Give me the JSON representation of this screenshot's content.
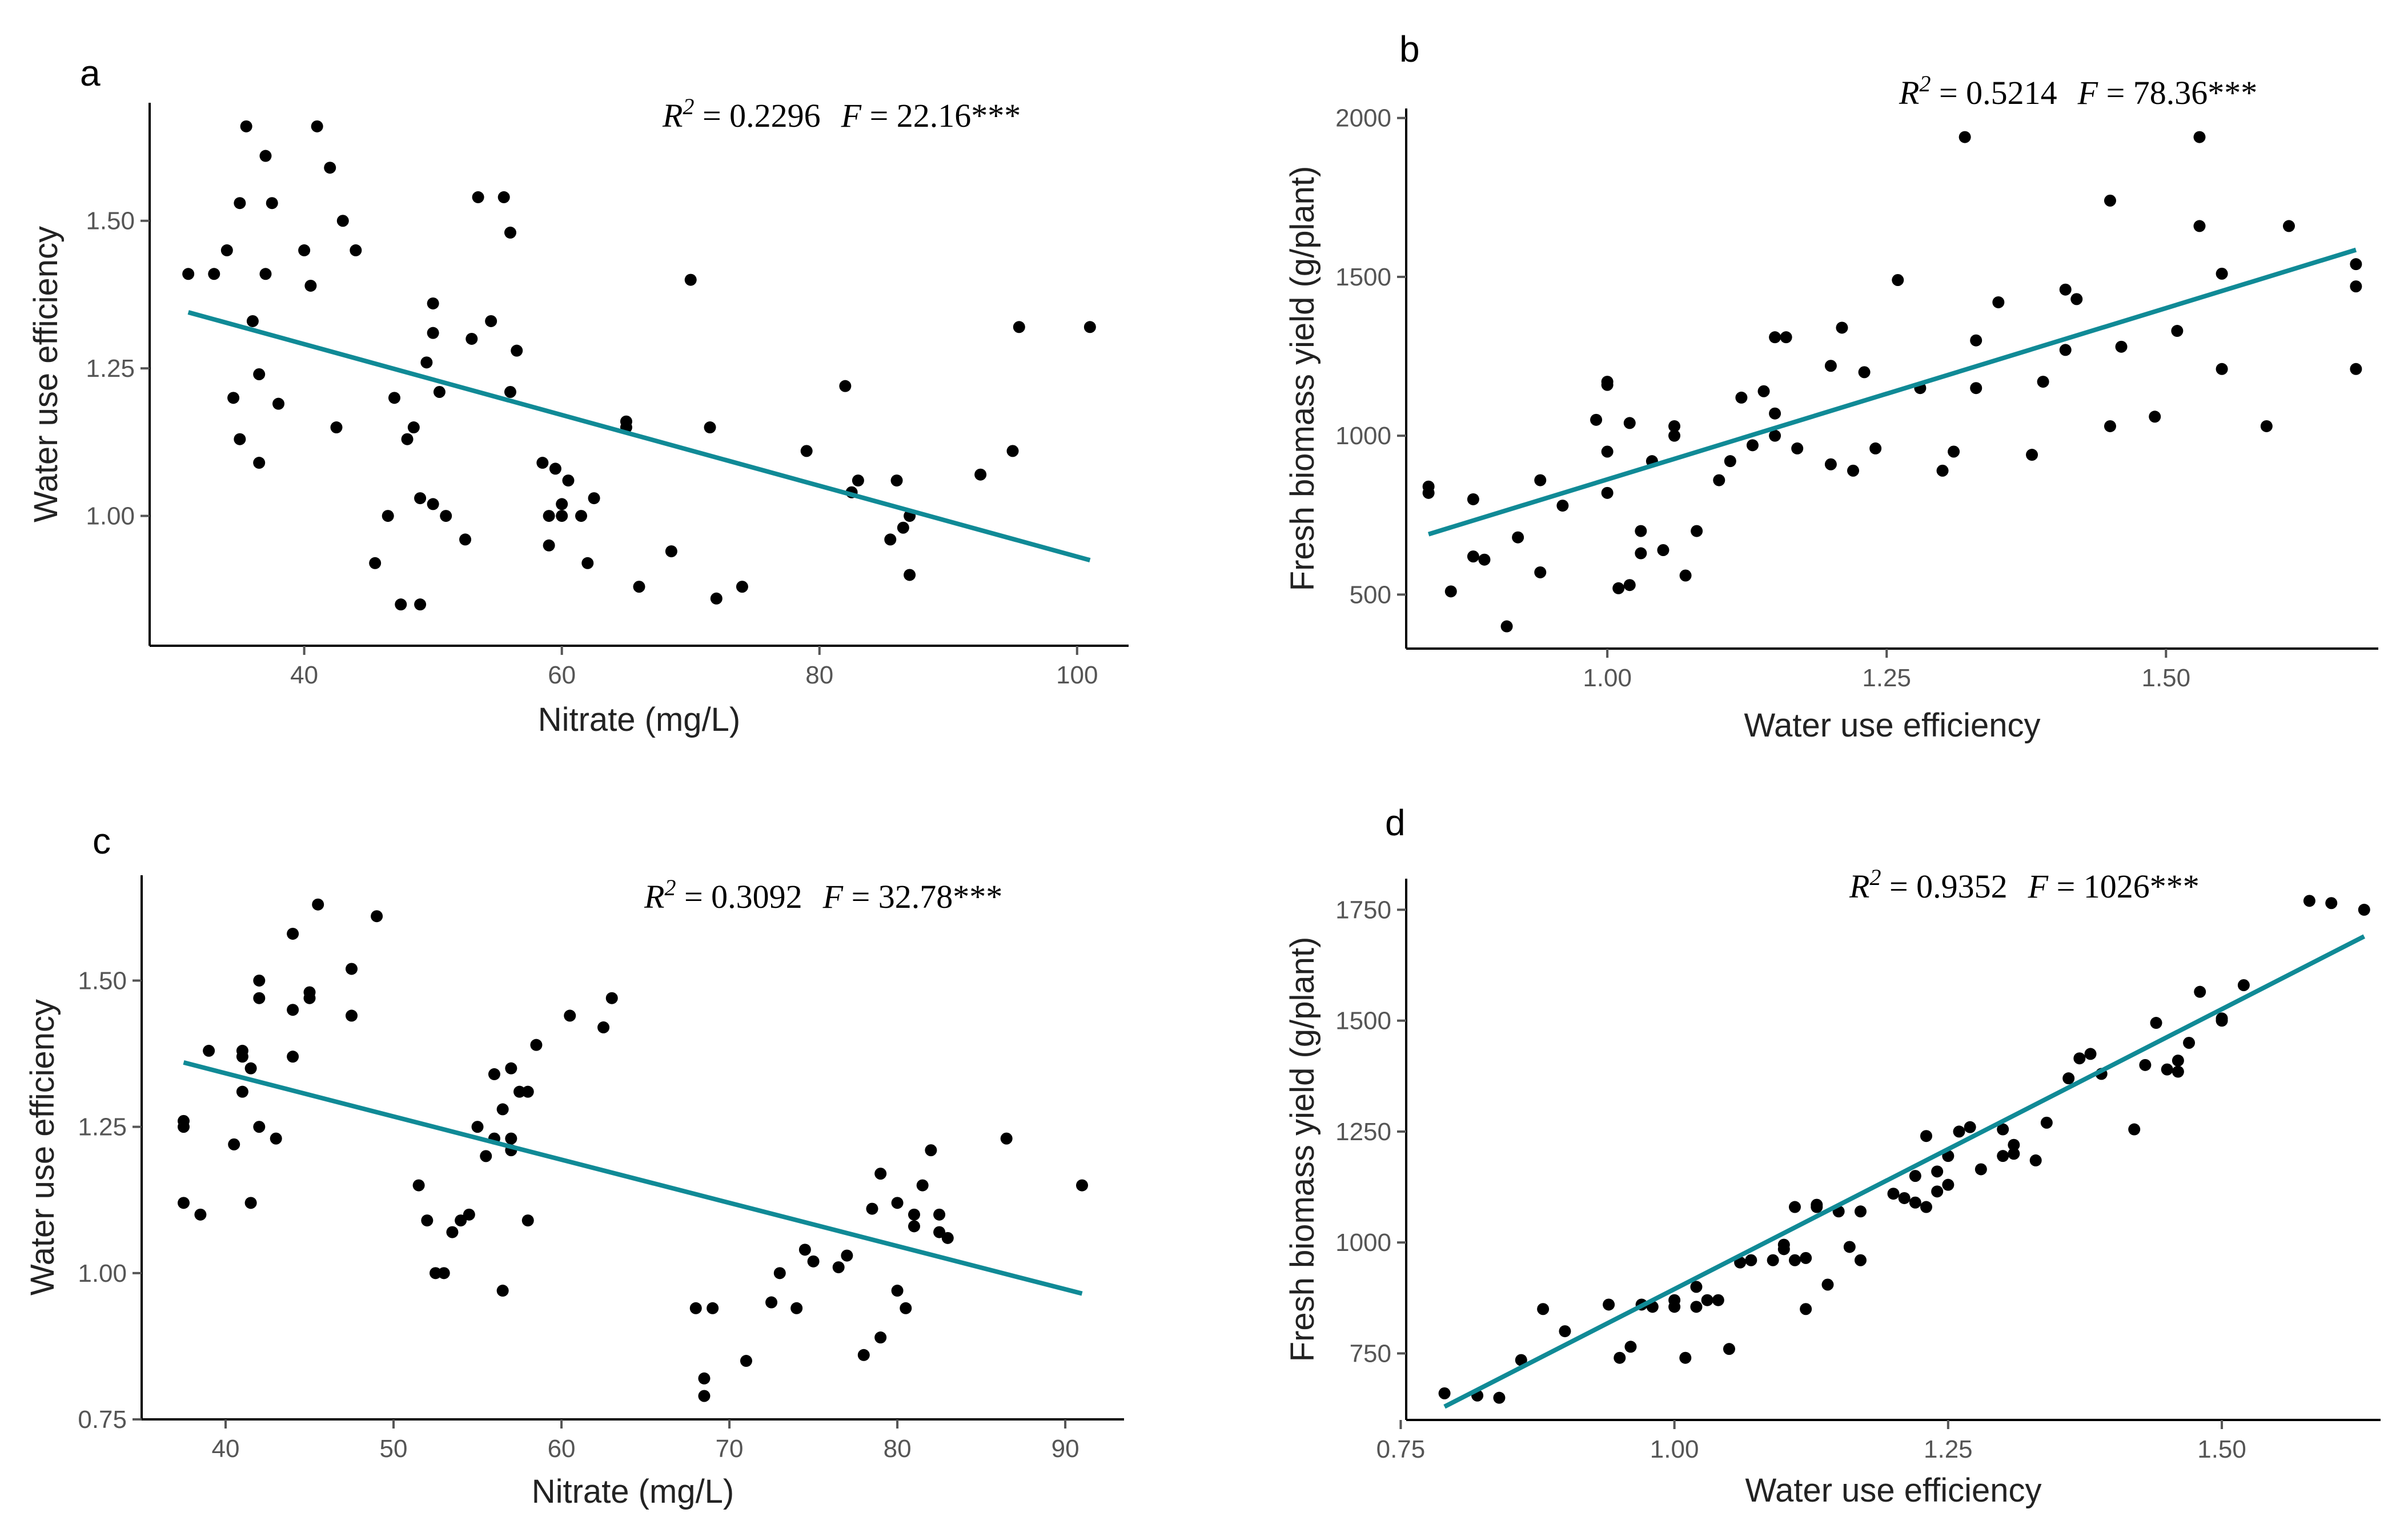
{
  "chart_data": [
    {
      "type": "scatter",
      "panel_label": "a",
      "xlabel": "Nitrate (mg/L)",
      "ylabel": "Water use efficiency",
      "xlim": [
        28,
        104
      ],
      "ylim": [
        0.78,
        1.7
      ],
      "xticks": [
        40,
        60,
        80,
        100
      ],
      "xtick_labels": [
        "40",
        "60",
        "80",
        "100"
      ],
      "yticks": [
        1.0,
        1.25,
        1.5
      ],
      "ytick_labels": [
        "1.00",
        "1.25",
        "1.50"
      ],
      "stats": {
        "r2_label": "R",
        "r2_sup": "2",
        "r2_value": " = 0.2296",
        "f_label": "F",
        "f_value": " = 22.16***"
      },
      "fit": {
        "x0": 31,
        "y0": 1.345,
        "x1": 101,
        "y1": 0.925
      },
      "points": {
        "x": [
          31,
          33,
          34,
          34.5,
          35,
          35,
          35.5,
          36.5,
          36,
          36.5,
          37,
          37,
          37.5,
          38,
          40,
          40.5,
          41,
          42,
          42.5,
          43,
          44,
          45.5,
          46.5,
          47,
          47.5,
          48,
          48.5,
          49,
          49,
          49.5,
          50,
          50,
          50,
          50.5,
          51,
          52.5,
          53,
          53.5,
          54.5,
          55.5,
          56,
          56,
          56.5,
          58.5,
          59,
          59,
          59.5,
          60,
          60,
          60.5,
          61.5,
          62,
          62.5,
          65,
          65,
          66,
          68.5,
          70,
          71.5,
          72,
          74,
          79,
          82,
          82.5,
          83,
          85.5,
          86,
          86.5,
          87,
          87,
          92.5,
          95,
          95.5,
          101
        ],
        "y": [
          1.41,
          1.41,
          1.45,
          1.2,
          1.13,
          1.53,
          1.66,
          1.24,
          1.33,
          1.09,
          1.41,
          1.61,
          1.53,
          1.19,
          1.45,
          1.39,
          1.66,
          1.59,
          1.15,
          1.5,
          1.45,
          0.92,
          1.0,
          1.2,
          0.85,
          1.13,
          1.15,
          0.85,
          1.03,
          1.26,
          1.31,
          1.02,
          1.36,
          1.21,
          1.0,
          0.96,
          1.3,
          1.54,
          1.33,
          1.54,
          1.21,
          1.48,
          1.28,
          1.09,
          0.95,
          1.0,
          1.08,
          1.0,
          1.02,
          1.06,
          1.0,
          0.92,
          1.03,
          1.16,
          1.15,
          0.88,
          0.94,
          1.4,
          1.15,
          0.86,
          0.88,
          1.11,
          1.22,
          1.04,
          1.06,
          0.96,
          1.06,
          0.98,
          1.0,
          0.9,
          1.07,
          1.11,
          1.32,
          1.32
        ]
      }
    },
    {
      "type": "scatter",
      "panel_label": "b",
      "xlabel": "Water use efficiency",
      "ylabel": "Fresh biomass yield (g/plant)",
      "xlim": [
        0.82,
        1.69
      ],
      "ylim": [
        330,
        2030
      ],
      "xticks": [
        1.0,
        1.25,
        1.5
      ],
      "xtick_labels": [
        "1.00",
        "1.25",
        "1.50"
      ],
      "yticks": [
        500,
        1000,
        1500,
        2000
      ],
      "ytick_labels": [
        "500",
        "1000",
        "1500",
        "2000"
      ],
      "stats": {
        "r2_label": "R",
        "r2_sup": "2",
        "r2_value": " = 0.5214",
        "f_label": "F",
        "f_value": " = 78.36***"
      },
      "fit": {
        "x0": 0.84,
        "y0": 690,
        "x1": 1.67,
        "y1": 1585
      },
      "points": {
        "x": [
          0.84,
          0.84,
          0.86,
          0.88,
          0.88,
          0.89,
          0.91,
          0.92,
          0.94,
          0.94,
          0.96,
          0.99,
          1.0,
          1.0,
          1.0,
          1.0,
          1.01,
          1.02,
          1.02,
          1.03,
          1.03,
          1.04,
          1.05,
          1.06,
          1.06,
          1.07,
          1.08,
          1.1,
          1.11,
          1.12,
          1.13,
          1.14,
          1.15,
          1.15,
          1.15,
          1.16,
          1.17,
          1.2,
          1.2,
          1.21,
          1.22,
          1.23,
          1.24,
          1.26,
          1.28,
          1.3,
          1.31,
          1.32,
          1.33,
          1.33,
          1.35,
          1.38,
          1.39,
          1.41,
          1.41,
          1.42,
          1.45,
          1.45,
          1.46,
          1.49,
          1.51,
          1.53,
          1.53,
          1.55,
          1.55,
          1.59,
          1.61,
          1.67,
          1.67
        ],
        "y": [
          840,
          820,
          510,
          800,
          620,
          610,
          400,
          680,
          860,
          570,
          780,
          1050,
          1160,
          1170,
          950,
          820,
          520,
          1040,
          530,
          700,
          630,
          920,
          640,
          1000,
          1030,
          560,
          700,
          860,
          920,
          1120,
          970,
          1140,
          1310,
          1070,
          1000,
          1310,
          960,
          1220,
          910,
          1340,
          890,
          1200,
          960,
          1490,
          1150,
          890,
          950,
          1940,
          1150,
          1300,
          1420,
          940,
          1170,
          1270,
          1460,
          1430,
          1030,
          1740,
          1280,
          1060,
          1330,
          1660,
          1940,
          1210,
          1510,
          1030,
          1660,
          1470,
          1540
        ],
        "x_extra": [
          1.67
        ],
        "y_extra": [
          1210
        ]
      }
    },
    {
      "type": "scatter",
      "panel_label": "c",
      "xlabel": "Nitrate (mg/L)",
      "ylabel": "Water use efficiency",
      "xlim": [
        35,
        93.5
      ],
      "ylim": [
        0.75,
        1.68
      ],
      "xticks": [
        40,
        50,
        60,
        70,
        80,
        90
      ],
      "xtick_labels": [
        "40",
        "50",
        "60",
        "70",
        "80",
        "90"
      ],
      "yticks": [
        0.75,
        1.0,
        1.25,
        1.5
      ],
      "ytick_labels": [
        "0.75",
        "1.00",
        "1.25",
        "1.50"
      ],
      "stats": {
        "r2_label": "R",
        "r2_sup": "2",
        "r2_value": " = 0.3092",
        "f_label": "F",
        "f_value": " = 32.78***"
      },
      "fit": {
        "x0": 37.5,
        "y0": 1.36,
        "x1": 91,
        "y1": 0.965
      },
      "points": {
        "x": [
          37.5,
          37.5,
          37.5,
          38.5,
          39,
          40.5,
          41,
          41,
          41,
          41.5,
          41.5,
          42,
          42,
          42,
          43,
          44,
          44,
          44,
          45,
          45,
          45.5,
          47.5,
          47.5,
          49,
          51.5,
          52,
          52.5,
          53,
          53.5,
          54,
          54.5,
          55,
          55.5,
          56,
          56,
          56.5,
          56.5,
          57,
          57,
          57,
          57.5,
          58,
          58,
          58.5,
          60.5,
          62.5,
          63,
          68,
          68.5,
          68.5,
          69,
          71,
          72.5,
          73,
          74,
          74.5,
          75,
          76.5,
          77,
          78,
          78.5,
          79,
          79,
          80,
          80,
          80.5,
          81,
          81,
          81.5,
          82,
          82.5,
          82.5,
          83,
          86.5,
          91
        ],
        "y": [
          1.26,
          1.25,
          1.12,
          1.1,
          1.38,
          1.22,
          1.31,
          1.37,
          1.38,
          1.12,
          1.35,
          1.25,
          1.47,
          1.5,
          1.23,
          1.58,
          1.45,
          1.37,
          1.47,
          1.48,
          1.63,
          1.52,
          1.44,
          1.61,
          1.15,
          1.09,
          1.0,
          1.0,
          1.07,
          1.09,
          1.1,
          1.25,
          1.2,
          1.34,
          1.23,
          1.28,
          0.97,
          1.23,
          1.35,
          1.21,
          1.31,
          1.09,
          1.31,
          1.39,
          1.44,
          1.42,
          1.47,
          0.94,
          0.79,
          0.82,
          0.94,
          0.85,
          0.95,
          1.0,
          0.94,
          1.04,
          1.02,
          1.01,
          1.03,
          0.86,
          1.11,
          1.17,
          0.89,
          0.97,
          1.12,
          0.94,
          1.08,
          1.1,
          1.15,
          1.21,
          1.07,
          1.1,
          1.06,
          1.23,
          1.15
        ]
      }
    },
    {
      "type": "scatter",
      "panel_label": "d",
      "xlabel": "Water use efficiency",
      "ylabel": "Fresh biomass yield (g/plant)",
      "xlim": [
        0.755,
        1.645
      ],
      "ylim": [
        600,
        1820
      ],
      "xticks": [
        0.75,
        1.0,
        1.25,
        1.5
      ],
      "xtick_labels": [
        "0.75",
        "1.00",
        "1.25",
        "1.50"
      ],
      "yticks": [
        750,
        1000,
        1250,
        1500,
        1750
      ],
      "ytick_labels": [
        "750",
        "1000",
        "1250",
        "1500",
        "1750"
      ],
      "stats": {
        "r2_label": "R",
        "r2_sup": "2",
        "r2_value": " = 0.9352",
        "f_label": "F",
        "f_value": " = 1026***"
      },
      "fit": {
        "x0": 0.79,
        "y0": 630,
        "x1": 1.63,
        "y1": 1690
      },
      "points": {
        "x": [
          0.79,
          0.82,
          0.84,
          0.86,
          0.88,
          0.9,
          0.94,
          0.95,
          0.96,
          0.97,
          0.98,
          1.0,
          1.0,
          1.01,
          1.02,
          1.02,
          1.03,
          1.04,
          1.05,
          1.06,
          1.07,
          1.09,
          1.1,
          1.1,
          1.11,
          1.11,
          1.12,
          1.12,
          1.13,
          1.13,
          1.14,
          1.15,
          1.16,
          1.17,
          1.17,
          1.2,
          1.21,
          1.22,
          1.22,
          1.23,
          1.23,
          1.24,
          1.24,
          1.25,
          1.25,
          1.26,
          1.27,
          1.28,
          1.3,
          1.3,
          1.31,
          1.31,
          1.33,
          1.34,
          1.36,
          1.37,
          1.38,
          1.39,
          1.42,
          1.43,
          1.44,
          1.45,
          1.46,
          1.46,
          1.47,
          1.48,
          1.5,
          1.5,
          1.52,
          1.58,
          1.6,
          1.63
        ],
        "y": [
          660,
          655,
          650,
          735,
          850,
          800,
          860,
          740,
          765,
          860,
          855,
          855,
          870,
          740,
          900,
          855,
          870,
          870,
          760,
          955,
          960,
          960,
          985,
          995,
          960,
          1080,
          965,
          850,
          1080,
          1085,
          905,
          1070,
          990,
          960,
          1070,
          1110,
          1100,
          1150,
          1090,
          1240,
          1080,
          1115,
          1160,
          1130,
          1195,
          1250,
          1260,
          1165,
          1255,
          1195,
          1200,
          1220,
          1185,
          1270,
          1370,
          1415,
          1425,
          1380,
          1255,
          1400,
          1495,
          1390,
          1385,
          1410,
          1450,
          1565,
          1505,
          1500,
          1580,
          1770,
          1765,
          1750
        ]
      }
    }
  ]
}
